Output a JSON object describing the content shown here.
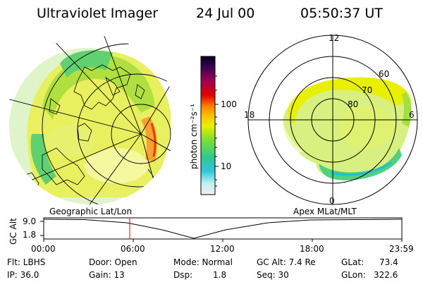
{
  "header": {
    "title": "Ultraviolet Imager",
    "date": "24 Jul 00",
    "time": "05:50:37 UT"
  },
  "colorbar": {
    "unit_label": "photon cm⁻²s⁻¹",
    "ticks": [
      "100",
      "10"
    ]
  },
  "polar_plot": {
    "mlt_labels": [
      "12",
      "18",
      "6",
      "0"
    ],
    "lat_labels": [
      "60",
      "70",
      "80"
    ]
  },
  "map_labels": {
    "left": "Geographic Lat/Lon",
    "right": "Apex MLat/MLT"
  },
  "altitude_panel": {
    "axis_label": "GC Alt",
    "y_ticks": [
      "9.0",
      "1.8"
    ],
    "x_ticks": [
      "00:00",
      "06:00",
      "12:00",
      "18:00",
      "23:59"
    ]
  },
  "info": {
    "flt": "Flt: LBHS",
    "ip": "IP: 36.0",
    "door": "Door: Open",
    "gain": "Gain: 13",
    "mode": "Mode: Normal",
    "dsp_label": "Dsp:",
    "dsp_value": "1.8",
    "gc_alt": "GC Alt: 7.4 Re",
    "seq": "Seq: 30",
    "glat_label": "GLat:",
    "glat_value": "73.4",
    "glon_label": "GLon:",
    "glon_value": "322.6"
  },
  "colors": {
    "colorbar_stops": [
      "#f0f0f0",
      "#80e0e0",
      "#20c0d0",
      "#40d080",
      "#90e020",
      "#e8f000",
      "#ffa000",
      "#e00000",
      "#a00040",
      "#500060",
      "#000030"
    ]
  }
}
